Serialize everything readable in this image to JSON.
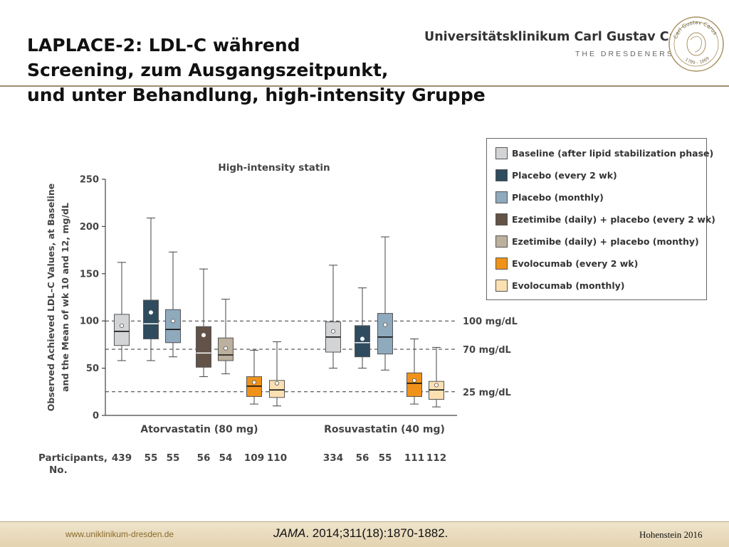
{
  "slide": {
    "title_lines": [
      "LAPLACE-2: LDL-C während",
      "Screening, zum Ausgangszeitpunkt,",
      "und unter Behandlung, high-intensity Gruppe"
    ],
    "org_name": "Universitätsklinikum Carl Gustav Carus",
    "org_tagline": "THE DRESDENERS.",
    "seal_text": "Carl Gustav Carus",
    "seal_years": "1789 – 1869",
    "footer_url": "www.uniklinikum-dresden.de",
    "footer_journal": "JAMA",
    "footer_citation": ". 2014;311(18):1870-1882.",
    "footer_author": "Hohenstein 2016"
  },
  "chart_data": {
    "type": "boxplot",
    "title": "High-intensity statin",
    "ylabel_lines": [
      "Observed Achieved LDL–C Values, at Baseline",
      "and the Mean of wk 10 and 12, mg/dL"
    ],
    "ylim": [
      0,
      250
    ],
    "yticks": [
      0,
      50,
      100,
      150,
      200,
      250
    ],
    "reference_lines": [
      {
        "value": 100,
        "label": "100 mg/dL"
      },
      {
        "value": 70,
        "label": "70 mg/dL"
      },
      {
        "value": 25,
        "label": "25 mg/dL"
      }
    ],
    "participants_label_lines": [
      "Participants,",
      "No."
    ],
    "groups": [
      {
        "name": "Atorvastatin (80 mg)",
        "boxes": [
          {
            "series": "Baseline (after lipid stabilization phase)",
            "n": "439",
            "min": 58,
            "q1": 74,
            "median": 89,
            "q3": 107,
            "max": 162,
            "mean": 95
          },
          {
            "series": "Placebo (every 2 wk)",
            "n": "55",
            "min": 58,
            "q1": 81,
            "median": 97,
            "q3": 122,
            "max": 209,
            "mean": 109
          },
          {
            "series": "Placebo (monthly)",
            "n": "55",
            "min": 62,
            "q1": 77,
            "median": 91,
            "q3": 112,
            "max": 173,
            "mean": 100
          },
          {
            "series": "Ezetimibe (daily) + placebo (every 2 wk)",
            "n": "56",
            "min": 41,
            "q1": 51,
            "median": 66,
            "q3": 94,
            "max": 155,
            "mean": 85
          },
          {
            "series": "Ezetimibe (daily) + placebo (monthy)",
            "n": "54",
            "min": 44,
            "q1": 58,
            "median": 64,
            "q3": 82,
            "max": 123,
            "mean": 71
          },
          {
            "series": "Evolocumab (every 2 wk)",
            "n": "109",
            "min": 12,
            "q1": 20,
            "median": 31,
            "q3": 41,
            "max": 69,
            "mean": 35
          },
          {
            "series": "Evolocumab (monthly)",
            "n": "110",
            "min": 10,
            "q1": 19,
            "median": 27,
            "q3": 37,
            "max": 78,
            "mean": 34
          }
        ]
      },
      {
        "name": "Rosuvastatin (40 mg)",
        "boxes": [
          {
            "series": "Baseline (after lipid stabilization phase)",
            "n": "334",
            "min": 50,
            "q1": 67,
            "median": 83,
            "q3": 99,
            "max": 159,
            "mean": 89
          },
          {
            "series": "Placebo (every 2 wk)",
            "n": "56",
            "min": 50,
            "q1": 62,
            "median": 77,
            "q3": 95,
            "max": 135,
            "mean": 81
          },
          {
            "series": "Placebo (monthly)",
            "n": "55",
            "min": 48,
            "q1": 65,
            "median": 83,
            "q3": 108,
            "max": 189,
            "mean": 96
          },
          {
            "series": "Evolocumab (every 2 wk)",
            "n": "111",
            "min": 12,
            "q1": 20,
            "median": 34,
            "q3": 45,
            "max": 81,
            "mean": 37
          },
          {
            "series": "Evolocumab (monthly)",
            "n": "112",
            "min": 9,
            "q1": 17,
            "median": 27,
            "q3": 36,
            "max": 72,
            "mean": 32
          }
        ]
      }
    ],
    "legend": [
      {
        "label": "Baseline (after lipid stabilization phase)",
        "color": "#d3d4d6"
      },
      {
        "label": "Placebo (every 2 wk)",
        "color": "#2f4b5e"
      },
      {
        "label": "Placebo (monthly)",
        "color": "#8fa9bd"
      },
      {
        "label": "Ezetimibe (daily) + placebo (every 2 wk)",
        "color": "#625247"
      },
      {
        "label": "Ezetimibe (daily) + placebo (monthy)",
        "color": "#bcb09e"
      },
      {
        "label": "Evolocumab (every 2 wk)",
        "color": "#f0921a"
      },
      {
        "label": "Evolocumab (monthly)",
        "color": "#fbe0b2"
      }
    ],
    "legend_position": "top-right"
  }
}
